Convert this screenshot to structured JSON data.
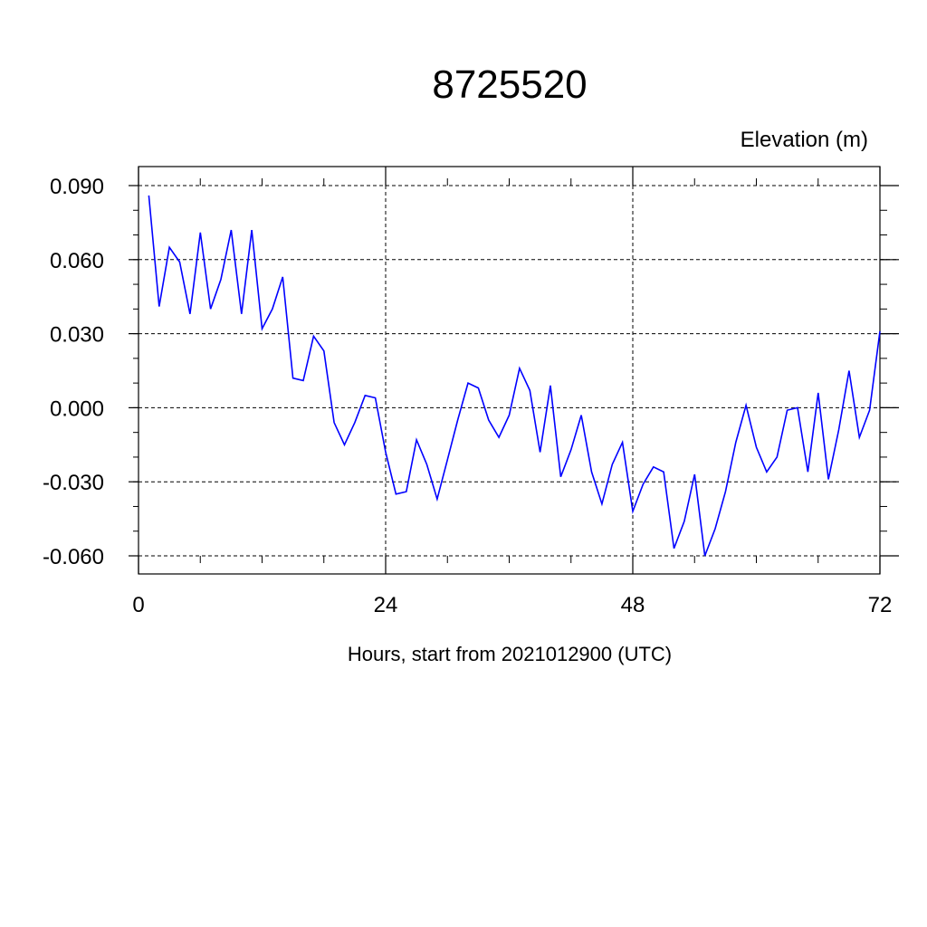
{
  "chart_data": {
    "type": "line",
    "title": "8725520",
    "subtitle": "Elevation (m)",
    "xlabel": "Hours, start from 2021012900 (UTC)",
    "ylabel": "",
    "xlim": [
      0,
      72
    ],
    "ylim": [
      -0.06,
      0.09
    ],
    "xticks": [
      0,
      24,
      48,
      72
    ],
    "xtick_labels": [
      "0",
      "24",
      "48",
      "72"
    ],
    "yticks": [
      -0.06,
      -0.03,
      0.0,
      0.03,
      0.06,
      0.09
    ],
    "ytick_labels": [
      "-0.060",
      "-0.030",
      "0.000",
      "0.030",
      "0.060",
      "0.090"
    ],
    "grid": true,
    "line_color": "#0000ff",
    "series": [
      {
        "x": [
          1,
          2,
          3,
          4,
          5,
          6,
          7,
          8,
          9,
          10,
          11,
          12,
          13,
          14,
          15,
          16,
          17,
          18,
          19,
          20,
          21,
          22,
          23,
          24,
          25,
          26,
          27,
          28,
          29,
          30,
          31,
          32,
          33,
          34,
          35,
          36,
          37,
          38,
          39,
          40,
          41,
          42,
          43,
          44,
          45,
          46,
          47,
          48,
          49,
          50,
          51,
          52,
          53,
          54,
          55,
          56,
          57,
          58,
          59,
          60,
          61,
          62,
          63,
          64,
          65,
          66,
          67,
          68,
          69,
          70,
          71,
          72
        ],
        "values": [
          0.086,
          0.041,
          0.065,
          0.059,
          0.038,
          0.071,
          0.04,
          0.052,
          0.072,
          0.038,
          0.072,
          0.032,
          0.04,
          0.053,
          0.012,
          0.011,
          0.029,
          0.023,
          -0.006,
          -0.015,
          -0.006,
          0.005,
          0.004,
          -0.018,
          -0.035,
          -0.034,
          -0.013,
          -0.023,
          -0.037,
          -0.021,
          -0.005,
          0.01,
          0.008,
          -0.005,
          -0.012,
          -0.003,
          0.016,
          0.007,
          -0.018,
          0.009,
          -0.028,
          -0.017,
          -0.003,
          -0.026,
          -0.039,
          -0.023,
          -0.014,
          -0.042,
          -0.031,
          -0.024,
          -0.026,
          -0.057,
          -0.046,
          -0.027,
          -0.06,
          -0.049,
          -0.034,
          -0.014,
          0.001,
          -0.016,
          -0.026,
          -0.02,
          -0.001,
          0.0,
          -0.026,
          0.006,
          -0.029,
          -0.009,
          0.015,
          -0.012,
          -0.001,
          0.031
        ]
      }
    ]
  }
}
